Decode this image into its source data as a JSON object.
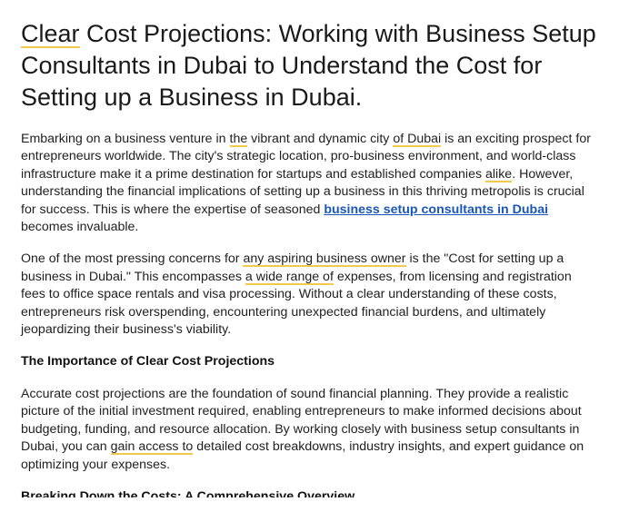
{
  "title": {
    "hl": "Clear",
    "rest": " Cost Projections: Working with Business Setup Consultants in Dubai to Understand the Cost for Setting up a Business in Dubai."
  },
  "p1": {
    "s1": "Embarking on a business venture in ",
    "h1": "the",
    "s2": " vibrant and dynamic city ",
    "h2": "of Dubai",
    "s3": " is an exciting prospect for entrepreneurs worldwide. The city's strategic location, pro-business environment, and world-class infrastructure make it a prime destination for startups and established companies ",
    "h3": "alike",
    "s4": ". However, understanding the financial implications of setting up a business in this thriving metropolis is crucial for success. This is where the expertise of seasoned ",
    "link": "business setup consultants in Dubai",
    "s5": " becomes invaluable."
  },
  "p2": {
    "s1": "One of the most pressing concerns for ",
    "h1": "any aspiring business owner",
    "s2": " is the \"Cost for setting up a business in Dubai.\" This encompasses ",
    "h2": "a wide range of",
    "s3": " expenses, from licensing and registration fees to office space rentals and visa processing. Without a clear understanding of these costs, entrepreneurs risk overspending, encountering unexpected financial burdens, and ultimately jeopardizing their business's viability."
  },
  "heading1": "The Importance of Clear Cost Projections",
  "p3": {
    "s1": "Accurate cost projections are the foundation of sound financial planning. They provide a realistic picture of the initial investment required, enabling entrepreneurs to make informed decisions about budgeting, funding, and resource allocation. By working closely with business setup consultants in Dubai, you can ",
    "h1": "gain access to",
    "s2": " detailed cost breakdowns, industry insights, and expert guidance on optimizing your expenses."
  },
  "heading2": "Breaking Down the Costs: A Comprehensive Overview"
}
